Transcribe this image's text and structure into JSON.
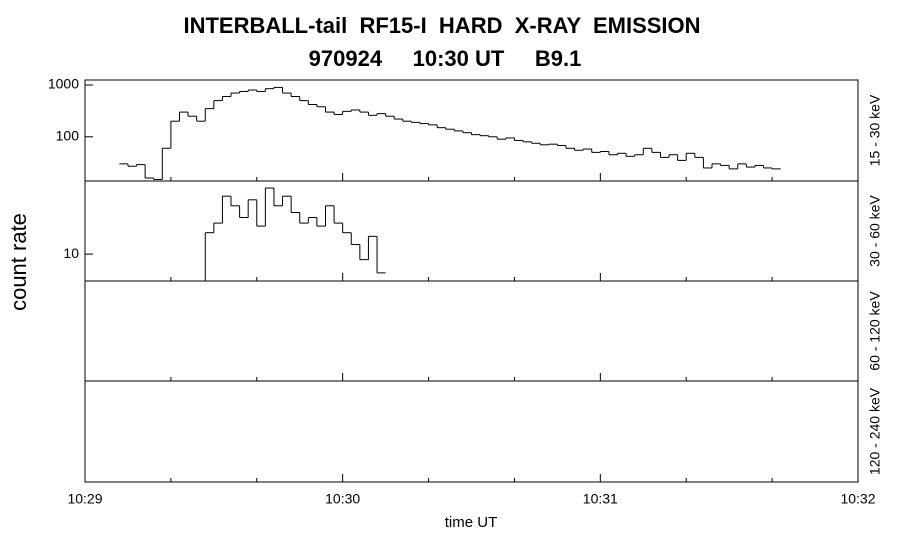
{
  "title": "INTERBALL-tail  RF15-I  HARD  X-RAY  EMISSION",
  "subtitle": "970924     10:30 UT     B9.1",
  "y_label": "count rate",
  "x_label": "time UT",
  "xlim": [
    0,
    180
  ],
  "xticks": [
    {
      "value": 0,
      "label": "10:29"
    },
    {
      "value": 60,
      "label": "10:30"
    },
    {
      "value": 120,
      "label": "10:31"
    },
    {
      "value": 180,
      "label": "10:32"
    }
  ],
  "xminor_ticks": [
    20,
    40,
    80,
    100,
    140,
    160
  ],
  "chart_data": [
    {
      "type": "line",
      "band": "15 - 30 keV",
      "log": true,
      "ylim": [
        14,
        1250
      ],
      "yticks": [
        100,
        1000
      ],
      "color": "#000000",
      "x": [
        8,
        10,
        12,
        14,
        16,
        18,
        20,
        22,
        24,
        26,
        28,
        30,
        32,
        34,
        36,
        38,
        40,
        42,
        44,
        46,
        48,
        50,
        52,
        54,
        56,
        58,
        60,
        62,
        64,
        66,
        68,
        70,
        72,
        74,
        76,
        78,
        80,
        82,
        84,
        86,
        88,
        90,
        92,
        94,
        96,
        98,
        100,
        102,
        104,
        106,
        108,
        110,
        112,
        114,
        116,
        118,
        120,
        122,
        124,
        126,
        128,
        130,
        132,
        134,
        136,
        138,
        140,
        142,
        144,
        146,
        148,
        150,
        152,
        154,
        156,
        158,
        160
      ],
      "values": [
        30,
        27,
        29,
        16,
        15,
        60,
        200,
        300,
        250,
        200,
        350,
        500,
        600,
        700,
        750,
        800,
        750,
        850,
        900,
        700,
        600,
        500,
        420,
        380,
        300,
        270,
        310,
        330,
        300,
        260,
        280,
        250,
        220,
        200,
        190,
        180,
        170,
        150,
        140,
        130,
        120,
        110,
        105,
        100,
        90,
        95,
        85,
        80,
        75,
        70,
        72,
        68,
        60,
        55,
        58,
        50,
        52,
        45,
        48,
        42,
        45,
        60,
        50,
        40,
        45,
        35,
        48,
        40,
        25,
        30,
        28,
        24,
        30,
        26,
        28,
        25,
        24
      ]
    },
    {
      "type": "line",
      "band": "30 - 60 keV",
      "log": true,
      "ylim": [
        6,
        40
      ],
      "yticks": [
        10
      ],
      "color": "#000000",
      "x": [
        26,
        28,
        30,
        32,
        34,
        36,
        38,
        40,
        42,
        44,
        46,
        48,
        50,
        52,
        54,
        56,
        58,
        60,
        62,
        64,
        66,
        68
      ],
      "values": [
        6,
        15,
        18,
        30,
        25,
        20,
        28,
        17,
        35,
        25,
        30,
        22,
        18,
        20,
        17,
        25,
        18,
        15,
        12,
        9,
        14,
        7
      ]
    },
    {
      "type": "line",
      "band": "60 - 120 keV",
      "x": [],
      "values": []
    },
    {
      "type": "line",
      "band": "120 - 240 keV",
      "x": [],
      "values": []
    }
  ]
}
